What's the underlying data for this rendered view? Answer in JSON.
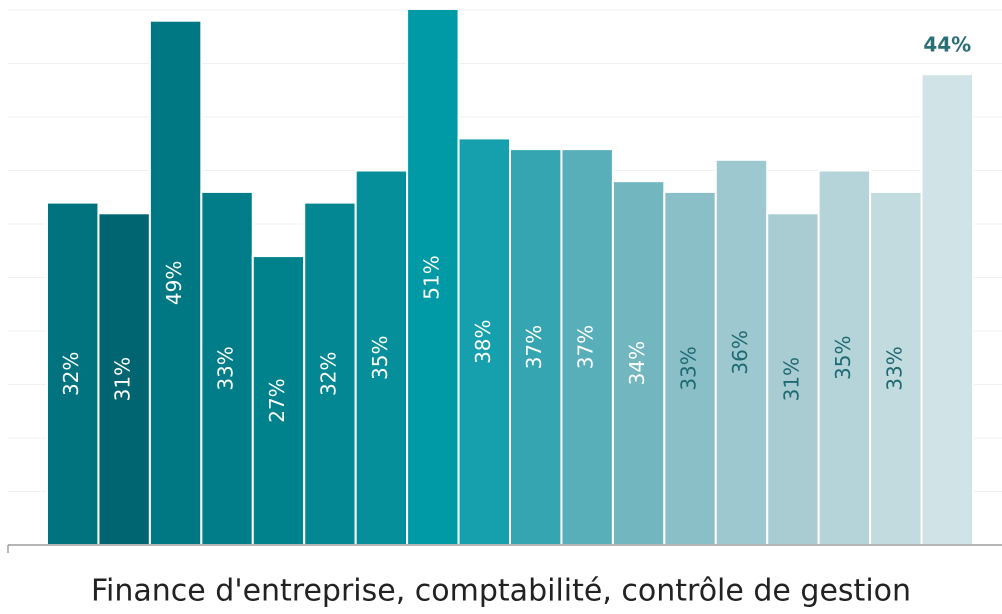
{
  "chart_data": {
    "type": "bar",
    "xlabel": "Finance d'entreprise, comptabilité, contrôle de gestion",
    "categories": [
      null,
      null,
      null,
      null,
      null,
      null,
      null,
      null,
      null,
      null,
      null,
      null,
      null,
      null,
      null,
      null,
      null,
      null
    ],
    "values": [
      32,
      31,
      49,
      33,
      27,
      32,
      35,
      51,
      38,
      37,
      37,
      34,
      33,
      36,
      31,
      35,
      33,
      44
    ],
    "value_labels": [
      "32%",
      "31%",
      "49%",
      "33%",
      "27%",
      "32%",
      "35%",
      "51%",
      "38%",
      "37%",
      "37%",
      "34%",
      "33%",
      "36%",
      "31%",
      "35%",
      "33%",
      "44%"
    ],
    "colors": [
      "#00737f",
      "#006570",
      "#007883",
      "#007d88",
      "#00828d",
      "#038893",
      "#058f9a",
      "#0099a6",
      "#16a0ad",
      "#34a5b1",
      "#58afb9",
      "#72b6bf",
      "#8abfc7",
      "#9ec8cf",
      "#a8ccd2",
      "#b5d4d9",
      "#c2dbdf",
      "#d0e3e7"
    ],
    "ylim": [
      0,
      50
    ],
    "yticks": [
      0,
      5,
      10,
      15,
      20,
      25,
      30,
      35,
      40,
      45,
      50
    ],
    "grid": true
  }
}
